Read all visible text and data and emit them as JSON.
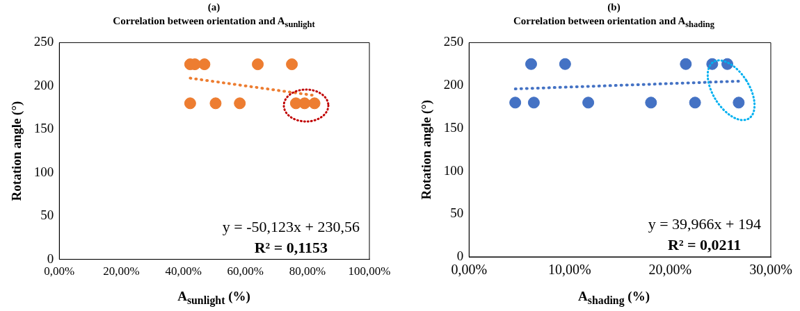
{
  "chart_data": [
    {
      "type": "scatter",
      "title": "(a)",
      "subtitle": "Correlation between orientation and A$_{sunlight}$",
      "xlabel": "A$_{sunlight}$ (%)",
      "ylabel": "Rotation angle (°)",
      "annotations": [
        "y = -50,123x + 230,56",
        "R² = 0,1153"
      ],
      "xlim": [
        0,
        1
      ],
      "xticks": [
        {
          "value": 0,
          "label": "0,00%"
        },
        {
          "value": 0.2,
          "label": "20,00%"
        },
        {
          "value": 0.4,
          "label": "40,00%"
        },
        {
          "value": 0.6,
          "label": "60,00%"
        },
        {
          "value": 0.8,
          "label": "80,00%"
        },
        {
          "value": 1,
          "label": "100,00%"
        }
      ],
      "ylim": [
        0,
        250
      ],
      "yticks": [
        0,
        50,
        100,
        150,
        200,
        250
      ],
      "grid": false,
      "legend": false,
      "series": [
        {
          "marker": "circle",
          "color": "#ed7d31",
          "x": [
            0.422,
            0.437,
            0.468,
            0.64,
            0.75,
            0.422,
            0.504,
            0.582,
            0.763,
            0.791,
            0.823
          ],
          "values": [
            225,
            225,
            225,
            225,
            225,
            180,
            180,
            180,
            180,
            180,
            180
          ]
        },
        {
          "type": "line",
          "marker": "none",
          "line_style": "dotted",
          "color": "#ed7d31",
          "x": [
            0.422,
            0.823
          ],
          "values": [
            209,
            189
          ]
        }
      ]
    },
    {
      "type": "scatter",
      "title": "(b)",
      "subtitle": "Correlation between orientation and A$_{shading}$",
      "xlabel": "A$_{shading}$ (%)",
      "ylabel": "Rotation angle (°)",
      "annotations": [
        "y = 39,966x + 194",
        "R² = 0,0211"
      ],
      "xlim": [
        0,
        0.3
      ],
      "xticks": [
        {
          "value": 0,
          "label": "0,00%"
        },
        {
          "value": 0.1,
          "label": "10,00%"
        },
        {
          "value": 0.2,
          "label": "20,00%"
        },
        {
          "value": 0.3,
          "label": "30,00%"
        }
      ],
      "ylim": [
        0,
        250
      ],
      "yticks": [
        0,
        50,
        100,
        150,
        200,
        250
      ],
      "grid": false,
      "legend": false,
      "series": [
        {
          "marker": "circle",
          "color": "#4472c4",
          "x": [
            0.0617,
            0.0955,
            0.2155,
            0.2418,
            0.2568,
            0.0459,
            0.0644,
            0.1185,
            0.1809,
            0.2247,
            0.2681
          ],
          "values": [
            225,
            225,
            225,
            225,
            225,
            180,
            180,
            180,
            180,
            180,
            180
          ]
        },
        {
          "type": "line",
          "line_style": "dotted",
          "color": "#4472c4",
          "x": [
            0.046,
            0.268
          ],
          "values": [
            196,
            205
          ]
        }
      ]
    }
  ]
}
